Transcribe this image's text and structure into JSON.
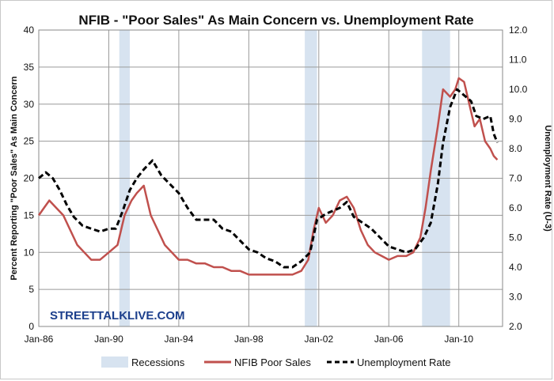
{
  "chart_data": {
    "type": "line",
    "title": "NFIB - \"Poor Sales\" As Main Concern vs. Unemployment Rate",
    "ylabel_left": "Percent Reporting \"Poor Sales\" As Main Concern",
    "ylabel_right": "Unemployment Rate (U-3)",
    "watermark": "STREETTALKLIVE.COM",
    "x_tick_labels": [
      "Jan-86",
      "Jan-90",
      "Jan-94",
      "Jan-98",
      "Jan-02",
      "Jan-06",
      "Jan-10"
    ],
    "x_tick_years": [
      1986,
      1990,
      1994,
      1998,
      2002,
      2006,
      2010
    ],
    "xlim": [
      1986,
      2012.5
    ],
    "y_left_ticks": [
      "0",
      "5",
      "10",
      "15",
      "20",
      "25",
      "30",
      "35",
      "40"
    ],
    "y_left_lim": [
      0,
      40
    ],
    "y_right_ticks": [
      "2.0",
      "3.0",
      "4.0",
      "5.0",
      "6.0",
      "7.0",
      "8.0",
      "9.0",
      "10.0",
      "11.0",
      "12.0"
    ],
    "y_right_lim": [
      2,
      12
    ],
    "recessions": [
      {
        "start": 1990.6,
        "end": 1991.2
      },
      {
        "start": 2001.2,
        "end": 2001.9
      },
      {
        "start": 2007.9,
        "end": 2009.5
      }
    ],
    "series": [
      {
        "name": "NFIB Poor Sales",
        "axis": "left",
        "color": "#c0504d",
        "style": "solid",
        "points": [
          [
            1986.0,
            15
          ],
          [
            1986.3,
            16
          ],
          [
            1986.6,
            17
          ],
          [
            1987.0,
            16
          ],
          [
            1987.4,
            15
          ],
          [
            1987.8,
            13
          ],
          [
            1988.2,
            11
          ],
          [
            1988.6,
            10
          ],
          [
            1989.0,
            9
          ],
          [
            1989.5,
            9
          ],
          [
            1990.0,
            10
          ],
          [
            1990.5,
            11
          ],
          [
            1990.9,
            15
          ],
          [
            1991.3,
            17
          ],
          [
            1991.6,
            18
          ],
          [
            1992.0,
            19
          ],
          [
            1992.4,
            15
          ],
          [
            1992.8,
            13
          ],
          [
            1993.2,
            11
          ],
          [
            1993.6,
            10
          ],
          [
            1994.0,
            9
          ],
          [
            1994.5,
            9
          ],
          [
            1995.0,
            8.5
          ],
          [
            1995.5,
            8.5
          ],
          [
            1996.0,
            8
          ],
          [
            1996.5,
            8
          ],
          [
            1997.0,
            7.5
          ],
          [
            1997.5,
            7.5
          ],
          [
            1998.0,
            7
          ],
          [
            1998.5,
            7
          ],
          [
            1999.0,
            7
          ],
          [
            1999.5,
            7
          ],
          [
            2000.0,
            7
          ],
          [
            2000.5,
            7
          ],
          [
            2001.0,
            7.5
          ],
          [
            2001.4,
            9
          ],
          [
            2001.7,
            13
          ],
          [
            2002.0,
            16
          ],
          [
            2002.4,
            14
          ],
          [
            2002.8,
            15
          ],
          [
            2003.2,
            17
          ],
          [
            2003.6,
            17.5
          ],
          [
            2004.0,
            16
          ],
          [
            2004.4,
            13
          ],
          [
            2004.8,
            11
          ],
          [
            2005.2,
            10
          ],
          [
            2005.6,
            9.5
          ],
          [
            2006.0,
            9
          ],
          [
            2006.5,
            9.5
          ],
          [
            2007.0,
            9.5
          ],
          [
            2007.4,
            10
          ],
          [
            2007.8,
            12
          ],
          [
            2008.1,
            16
          ],
          [
            2008.4,
            21
          ],
          [
            2008.8,
            27
          ],
          [
            2009.1,
            32
          ],
          [
            2009.5,
            31
          ],
          [
            2009.8,
            32
          ],
          [
            2010.0,
            33.5
          ],
          [
            2010.3,
            33
          ],
          [
            2010.6,
            30
          ],
          [
            2010.9,
            27
          ],
          [
            2011.2,
            28
          ],
          [
            2011.5,
            25
          ],
          [
            2011.8,
            24
          ],
          [
            2012.0,
            23
          ],
          [
            2012.2,
            22.5
          ]
        ]
      },
      {
        "name": "Unemployment Rate",
        "axis": "right",
        "color": "#000000",
        "style": "dashed",
        "points": [
          [
            1986.0,
            7.0
          ],
          [
            1986.4,
            7.2
          ],
          [
            1986.8,
            7.0
          ],
          [
            1987.2,
            6.6
          ],
          [
            1987.6,
            6.1
          ],
          [
            1988.0,
            5.7
          ],
          [
            1988.5,
            5.4
          ],
          [
            1989.0,
            5.3
          ],
          [
            1989.5,
            5.2
          ],
          [
            1990.0,
            5.3
          ],
          [
            1990.4,
            5.3
          ],
          [
            1990.8,
            5.9
          ],
          [
            1991.2,
            6.6
          ],
          [
            1991.6,
            7.0
          ],
          [
            1992.0,
            7.3
          ],
          [
            1992.5,
            7.6
          ],
          [
            1993.0,
            7.1
          ],
          [
            1993.5,
            6.8
          ],
          [
            1994.0,
            6.5
          ],
          [
            1994.5,
            6.0
          ],
          [
            1995.0,
            5.6
          ],
          [
            1995.5,
            5.6
          ],
          [
            1996.0,
            5.6
          ],
          [
            1996.5,
            5.3
          ],
          [
            1997.0,
            5.2
          ],
          [
            1997.5,
            4.9
          ],
          [
            1998.0,
            4.6
          ],
          [
            1998.5,
            4.5
          ],
          [
            1999.0,
            4.3
          ],
          [
            1999.5,
            4.2
          ],
          [
            2000.0,
            4.0
          ],
          [
            2000.5,
            4.0
          ],
          [
            2001.0,
            4.2
          ],
          [
            2001.5,
            4.5
          ],
          [
            2001.9,
            5.6
          ],
          [
            2002.4,
            5.8
          ],
          [
            2002.8,
            5.9
          ],
          [
            2003.2,
            6.0
          ],
          [
            2003.6,
            6.2
          ],
          [
            2004.0,
            5.7
          ],
          [
            2004.5,
            5.5
          ],
          [
            2005.0,
            5.3
          ],
          [
            2005.5,
            5.0
          ],
          [
            2006.0,
            4.7
          ],
          [
            2006.5,
            4.6
          ],
          [
            2007.0,
            4.5
          ],
          [
            2007.5,
            4.6
          ],
          [
            2008.0,
            5.0
          ],
          [
            2008.4,
            5.5
          ],
          [
            2008.8,
            6.8
          ],
          [
            2009.1,
            8.2
          ],
          [
            2009.5,
            9.4
          ],
          [
            2009.9,
            10.0
          ],
          [
            2010.3,
            9.8
          ],
          [
            2010.7,
            9.6
          ],
          [
            2011.0,
            9.1
          ],
          [
            2011.4,
            9.0
          ],
          [
            2011.8,
            9.1
          ],
          [
            2012.0,
            8.5
          ],
          [
            2012.2,
            8.2
          ]
        ]
      }
    ],
    "legend": {
      "placement": "bottom",
      "items": [
        {
          "label": "Recessions",
          "kind": "box",
          "color": "#d7e3f0"
        },
        {
          "label": "NFIB Poor Sales",
          "kind": "solid",
          "color": "#c0504d"
        },
        {
          "label": "Unemployment Rate",
          "kind": "dashed",
          "color": "#000000"
        }
      ]
    },
    "grid": true,
    "recession_color": "#d7e3f0"
  }
}
